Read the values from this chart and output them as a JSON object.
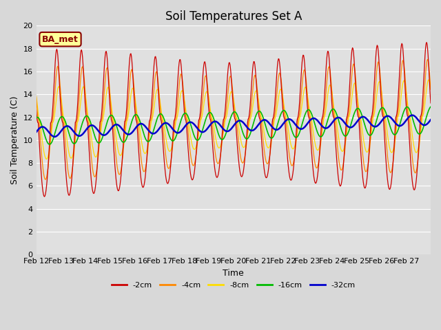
{
  "title": "Soil Temperatures Set A",
  "xlabel": "Time",
  "ylabel": "Soil Temperature (C)",
  "ylim": [
    0,
    20
  ],
  "yticks": [
    0,
    2,
    4,
    6,
    8,
    10,
    12,
    14,
    16,
    18,
    20
  ],
  "date_labels": [
    "Feb 12",
    "Feb 13",
    "Feb 14",
    "Feb 15",
    "Feb 16",
    "Feb 17",
    "Feb 18",
    "Feb 19",
    "Feb 20",
    "Feb 21",
    "Feb 22",
    "Feb 23",
    "Feb 24",
    "Feb 25",
    "Feb 26",
    "Feb 27"
  ],
  "colors": {
    "-2cm": "#cc0000",
    "-4cm": "#ff8800",
    "-8cm": "#ffdd00",
    "-16cm": "#00bb00",
    "-32cm": "#0000cc"
  },
  "annotation_text": "BA_met",
  "annotation_color": "#880000",
  "annotation_bg": "#ffff99",
  "bg_color": "#d8d8d8",
  "plot_bg": "#e0e0e0",
  "grid_color": "#ffffff",
  "title_fontsize": 12,
  "label_fontsize": 9,
  "tick_fontsize": 8
}
